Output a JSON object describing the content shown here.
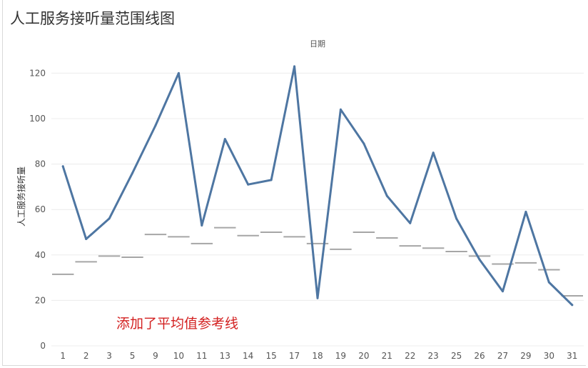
{
  "chart_data": {
    "type": "line",
    "title": "人工服务接听量范围线图",
    "column_header": "日期",
    "ylabel": "人工服务接听量",
    "xlabel": "",
    "ylim": [
      0,
      130
    ],
    "yticks": [
      0,
      20,
      40,
      60,
      80,
      100,
      120
    ],
    "grid": true,
    "categories": [
      "1",
      "2",
      "3",
      "5",
      "9",
      "10",
      "11",
      "13",
      "14",
      "15",
      "17",
      "18",
      "19",
      "20",
      "21",
      "22",
      "23",
      "25",
      "26",
      "27",
      "29",
      "30",
      "31"
    ],
    "series": [
      {
        "values": [
          79,
          47,
          56,
          76,
          97,
          120,
          53,
          91,
          71,
          73,
          123,
          21,
          104,
          89,
          66,
          54,
          85,
          56,
          38,
          24,
          59,
          28,
          18
        ]
      }
    ],
    "reference_lines": [
      31.5,
      37,
      39.5,
      39,
      49,
      48,
      45,
      52,
      48.5,
      50,
      48,
      45,
      42.5,
      50,
      47.5,
      44,
      43,
      41.5,
      39.5,
      36,
      36.5,
      33.5,
      22
    ],
    "annotation": "添加了平均值参考线",
    "colors": {
      "line": "#4e76a2",
      "reference": "#a6a6a6",
      "annotation": "#d32020",
      "grid": "#ececec"
    }
  }
}
